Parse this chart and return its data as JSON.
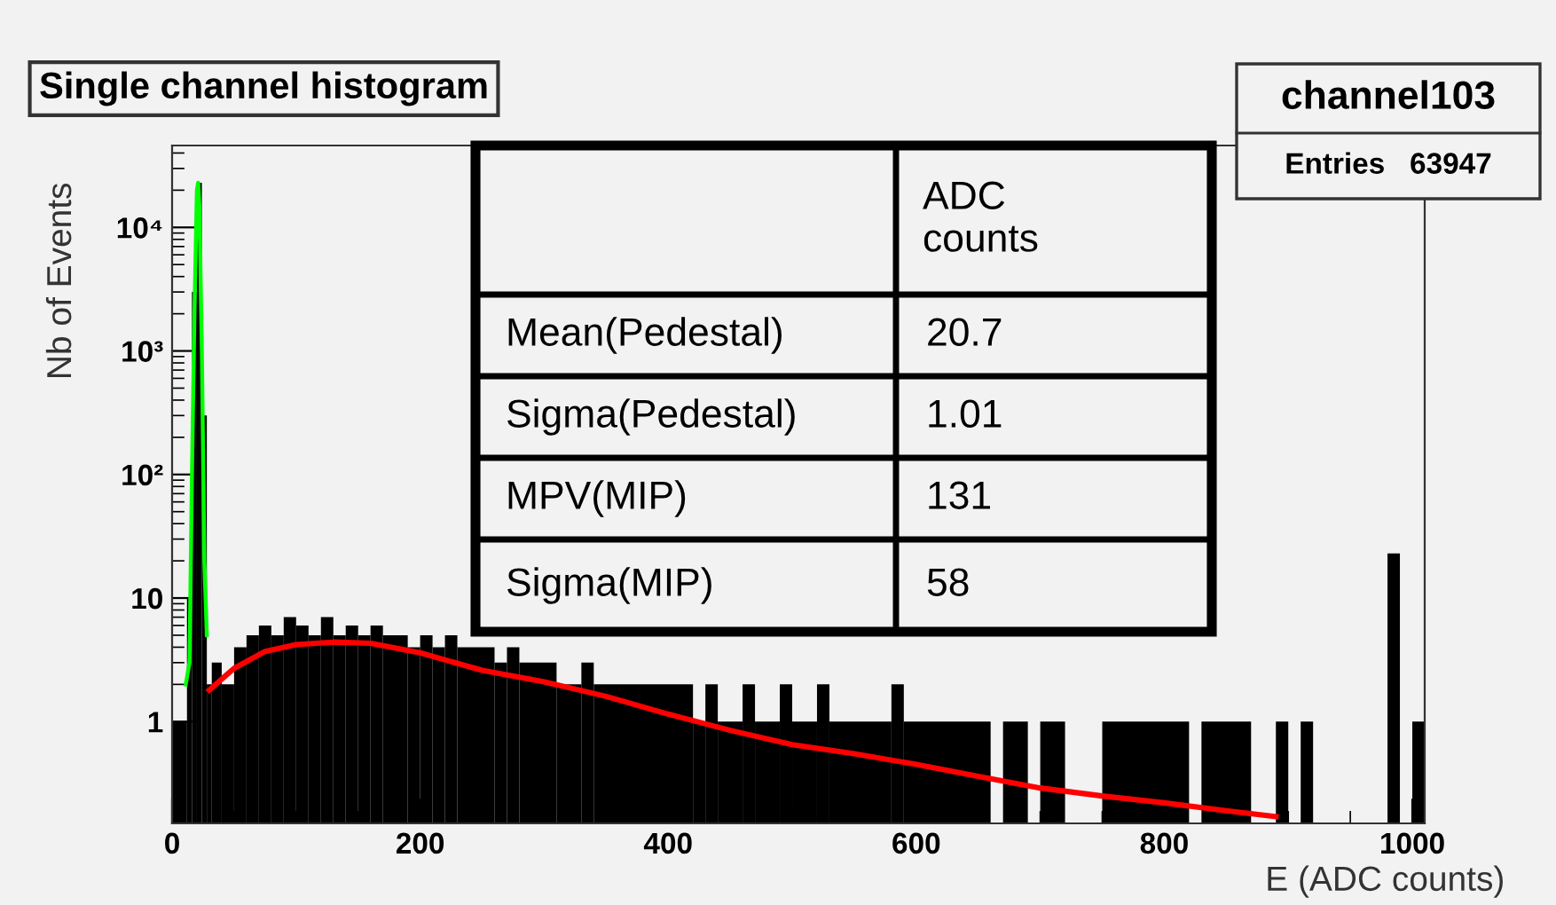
{
  "chart_data": {
    "type": "histogram",
    "title": "Single channel histogram",
    "xlabel": "E (ADC counts)",
    "ylabel": "Nb of Events",
    "bins": [
      0,
      12,
      16,
      20,
      24,
      28,
      32,
      40,
      50,
      60,
      70,
      80,
      90,
      100,
      110,
      120,
      130,
      140,
      150,
      160,
      170,
      190,
      200,
      210,
      220,
      230,
      260,
      270,
      280,
      310,
      330,
      340,
      420,
      430,
      440,
      460,
      470,
      490,
      500,
      520,
      530,
      580,
      590,
      660,
      670,
      690,
      700,
      720,
      750,
      820,
      830,
      870,
      890,
      900,
      910,
      920,
      980,
      990,
      1000,
      1010
    ],
    "values": [
      1,
      10,
      3000,
      23000,
      300,
      2,
      3,
      2,
      4,
      5,
      6,
      5,
      7,
      6,
      5,
      7,
      5,
      6,
      5,
      6,
      5,
      4,
      5,
      4,
      5,
      4,
      3,
      4,
      3,
      2,
      3,
      2,
      1,
      2,
      1,
      2,
      1,
      2,
      1,
      2,
      1,
      2,
      1,
      null,
      1,
      null,
      1,
      null,
      1,
      null,
      1,
      null,
      1,
      null,
      1,
      null,
      23,
      null,
      1
    ],
    "color": "#000000",
    "series": [
      {
        "type": "line",
        "color": "#00ff00",
        "x": [
          11,
          14,
          16,
          18,
          20,
          21,
          22,
          24,
          26,
          28
        ],
        "values": [
          2,
          3,
          100,
          2000,
          20000,
          23000,
          15000,
          1000,
          20,
          5
        ]
      },
      {
        "type": "line",
        "color": "#ff0000",
        "x": [
          30,
          50,
          75,
          100,
          130,
          160,
          200,
          250,
          300,
          350,
          400,
          450,
          500,
          550,
          600,
          650,
          700,
          750,
          800,
          850,
          890
        ],
        "values": [
          1.8,
          2.7,
          3.7,
          4.2,
          4.4,
          4.3,
          3.6,
          2.6,
          2.1,
          1.6,
          1.15,
          0.85,
          0.65,
          0.55,
          0.45,
          0.36,
          0.29,
          0.25,
          0.22,
          0.19,
          0.17
        ]
      }
    ],
    "log": "y",
    "xlim": [
      0,
      1010
    ],
    "xticks": [
      0,
      200,
      400,
      600,
      800,
      1000
    ],
    "ylim": [
      0.15,
      46000
    ],
    "yticks": [
      1,
      10,
      {
        "value": 100,
        "label": "10²"
      },
      {
        "value": 1000,
        "label": "10³"
      },
      {
        "value": 10000,
        "label": "10⁴"
      }
    ],
    "grid": false,
    "legend": false,
    "annotations": [
      "channel103",
      "Entries   63947",
      "ADC\ncounts",
      "Mean(Pedestal)",
      "20.7",
      "Sigma(Pedestal)",
      "1.01",
      "MPV(MIP)",
      "131",
      "Sigma(MIP)",
      "58"
    ]
  }
}
